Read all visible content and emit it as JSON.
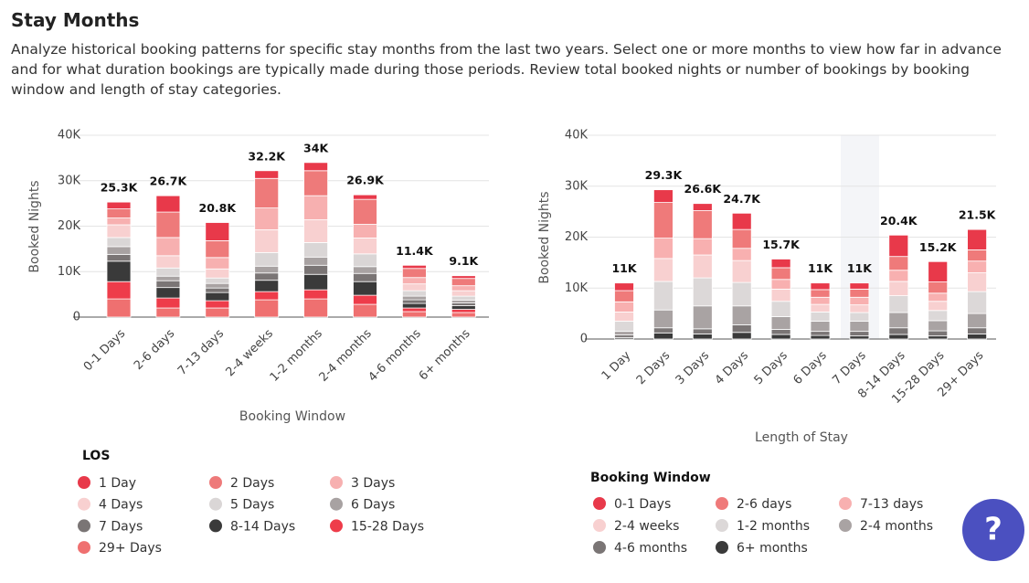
{
  "header": {
    "title": "Stay Months",
    "description": "Analyze historical booking patterns for specific stay months from the last two years. Select one or more months to view how far in advance and for what duration bookings are typically made during those periods. Review total booked nights or number of bookings by booking window and length of stay categories."
  },
  "help_label": "?",
  "chart_data": [
    {
      "type": "bar",
      "stacked": true,
      "grid": true,
      "ylabel": "Booked Nights",
      "xlabel": "Booking Window",
      "legend_title": "LOS",
      "categories": [
        "0-1 Days",
        "2-6 days",
        "7-13 days",
        "2-4 weeks",
        "1-2 months",
        "2-4 months",
        "4-6 months",
        "6+ months"
      ],
      "ylim": [
        0,
        40000
      ],
      "yticks": [
        {
          "value": 0,
          "label": "0"
        },
        {
          "value": 10000,
          "label": "10K"
        },
        {
          "value": 20000,
          "label": "20K"
        },
        {
          "value": 30000,
          "label": "30K"
        },
        {
          "value": 40000,
          "label": "40K"
        }
      ],
      "totals": [
        25300,
        26700,
        20800,
        32200,
        34000,
        26900,
        11400,
        9100
      ],
      "total_labels": [
        "25.3K",
        "26.7K",
        "20.8K",
        "32.2K",
        "34K",
        "26.9K",
        "11.4K",
        "9.1K"
      ],
      "series": [
        {
          "name": "1 Day",
          "color": "#e8394a",
          "values": [
            1500,
            3600,
            4000,
            1700,
            1800,
            1000,
            700,
            600
          ]
        },
        {
          "name": "2 Days",
          "color": "#ee7a7a",
          "values": [
            2000,
            5600,
            3700,
            6500,
            5500,
            5500,
            2000,
            1600
          ]
        },
        {
          "name": "3 Days",
          "color": "#f7b0b0",
          "values": [
            1500,
            4000,
            2500,
            4800,
            5300,
            3000,
            1400,
            1100
          ]
        },
        {
          "name": "4 Days",
          "color": "#f8d0d0",
          "values": [
            2800,
            2700,
            2000,
            5000,
            5000,
            3500,
            1500,
            1200
          ]
        },
        {
          "name": "5 Days",
          "color": "#dad6d6",
          "values": [
            2000,
            1800,
            1200,
            3000,
            3200,
            2800,
            1200,
            900
          ]
        },
        {
          "name": "6 Days",
          "color": "#a8a2a2",
          "values": [
            1700,
            1000,
            1000,
            1500,
            1800,
            1500,
            800,
            600
          ]
        },
        {
          "name": "7 Days",
          "color": "#7a7575",
          "values": [
            1500,
            1500,
            1000,
            1600,
            2000,
            1800,
            800,
            600
          ]
        },
        {
          "name": "8-14 Days",
          "color": "#3a3a3a",
          "values": [
            4500,
            2300,
            1800,
            2500,
            3400,
            3000,
            1000,
            800
          ]
        },
        {
          "name": "15-28 Days",
          "color": "#ee3c4a",
          "values": [
            3800,
            2200,
            1600,
            1800,
            2000,
            2000,
            800,
            700
          ]
        },
        {
          "name": "29+ Days",
          "color": "#ef7070",
          "values": [
            4000,
            2000,
            2000,
            3800,
            4000,
            2800,
            1200,
            1000
          ]
        }
      ]
    },
    {
      "type": "bar",
      "stacked": true,
      "grid": true,
      "ylabel": "Booked Nights",
      "xlabel": "Length of Stay",
      "legend_title": "Booking Window",
      "categories": [
        "1 Day",
        "2 Days",
        "3 Days",
        "4 Days",
        "5 Days",
        "6 Days",
        "7 Days",
        "8-14 Days",
        "15-28 Days",
        "29+ Days"
      ],
      "ylim": [
        0,
        40000
      ],
      "yticks": [
        {
          "value": 0,
          "label": "0"
        },
        {
          "value": 10000,
          "label": "10K"
        },
        {
          "value": 20000,
          "label": "20K"
        },
        {
          "value": 30000,
          "label": "30K"
        },
        {
          "value": 40000,
          "label": "40K"
        }
      ],
      "totals": [
        11000,
        29300,
        26600,
        24700,
        15700,
        11000,
        11000,
        20400,
        15200,
        21500
      ],
      "total_labels": [
        "11K",
        "29.3K",
        "26.6K",
        "24.7K",
        "15.7K",
        "11K",
        "11K",
        "20.4K",
        "15.2K",
        "21.5K"
      ],
      "series": [
        {
          "name": "0-1 Days",
          "color": "#e8394a",
          "values": [
            1500,
            2500,
            1400,
            3200,
            1700,
            1300,
            1200,
            4200,
            4000,
            4000
          ]
        },
        {
          "name": "2-6 days",
          "color": "#ef7a7a",
          "values": [
            2200,
            7000,
            5500,
            3700,
            2300,
            1500,
            1600,
            2700,
            2200,
            2200
          ]
        },
        {
          "name": "7-13 days",
          "color": "#f8b0b0",
          "values": [
            2000,
            4000,
            3200,
            2400,
            1900,
            1400,
            1500,
            2200,
            1600,
            2300
          ]
        },
        {
          "name": "2-4 weeks",
          "color": "#f8d0d0",
          "values": [
            1800,
            4500,
            4500,
            4300,
            2400,
            1500,
            1500,
            2800,
            1800,
            3700
          ]
        },
        {
          "name": "1-2 months",
          "color": "#dcd8d8",
          "values": [
            2000,
            5600,
            5500,
            4600,
            3000,
            1800,
            1700,
            3300,
            2000,
            4300
          ]
        },
        {
          "name": "2-4 months",
          "color": "#a9a3a3",
          "values": [
            700,
            3500,
            4500,
            3700,
            2500,
            2000,
            2000,
            3000,
            2000,
            2800
          ]
        },
        {
          "name": "4-6 months",
          "color": "#7a7575",
          "values": [
            500,
            1000,
            1000,
            1500,
            1000,
            800,
            900,
            1300,
            1000,
            1200
          ]
        },
        {
          "name": "6+ months",
          "color": "#3a3a3a",
          "values": [
            300,
            1200,
            1000,
            1300,
            900,
            700,
            600,
            900,
            600,
            1000
          ]
        }
      ]
    }
  ]
}
